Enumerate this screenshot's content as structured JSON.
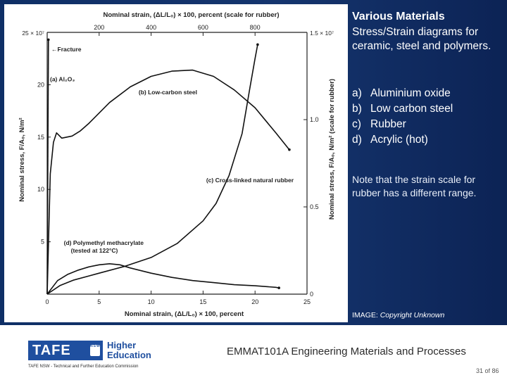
{
  "sidebar": {
    "title": "Various Materials",
    "subtitle": "Stress/Strain diagrams for ceramic, steel and polymers.",
    "list": [
      {
        "letter": "a)",
        "text": "Aluminium oxide"
      },
      {
        "letter": "b)",
        "text": "Low carbon steel"
      },
      {
        "letter": "c)",
        "text": "Rubber"
      },
      {
        "letter": "d)",
        "text": "Acrylic (hot)"
      }
    ],
    "note": "Note that the strain scale for rubber has a different range."
  },
  "credit": {
    "prefix": "IMAGE:",
    "text": "Copyright Unknown"
  },
  "footer": {
    "logo_text": "TAFE",
    "logo_badge": "NSW",
    "logo_sub_1": "Higher",
    "logo_sub_2": "Education",
    "commission": "TAFE NSW - Technical and Further Education Commission",
    "course": "EMMAT101A Engineering Materials and Processes",
    "page": "31 of 86"
  },
  "chart_data": {
    "type": "line",
    "title": "",
    "xlabel": "Nominal strain, (ΔL/L₀) × 100, percent",
    "x2label": "Nominal strain, (ΔL/L₀) × 100, percent (scale for rubber)",
    "ylabel": "Nominal stress, F/A₀, N/m²",
    "y2label": "Nominal stress, F/A₀, N/m² (scale for rubber)",
    "xlim": [
      0,
      25
    ],
    "x2lim": [
      0,
      1000
    ],
    "ylim": [
      0,
      25
    ],
    "y2lim": [
      0,
      1.5
    ],
    "x_ticks": [
      0,
      5,
      10,
      15,
      20,
      25
    ],
    "x2_ticks": [
      200,
      400,
      600,
      800
    ],
    "y_ticks": [
      5,
      10,
      15,
      20
    ],
    "y_top_label": "25 × 10⁷",
    "y2_ticks": [
      0,
      0.5,
      1.0
    ],
    "y2_top_label": "1.5 × 10⁷",
    "series": [
      {
        "name": "(a) Al₂O₃",
        "label": "(a) Al₂O₃",
        "axis": "primary",
        "points": [
          [
            0,
            0
          ],
          [
            0.12,
            24.3
          ]
        ]
      },
      {
        "name": "(b) Low-carbon steel",
        "label": "(b) Low-carbon steel",
        "axis": "primary",
        "points": [
          [
            0,
            0
          ],
          [
            0.3,
            11.5
          ],
          [
            0.6,
            14.5
          ],
          [
            0.9,
            15.4
          ],
          [
            1.4,
            14.9
          ],
          [
            2.4,
            15.1
          ],
          [
            3.2,
            15.6
          ],
          [
            4,
            16.3
          ],
          [
            6,
            18.3
          ],
          [
            8,
            19.8
          ],
          [
            10,
            20.8
          ],
          [
            12,
            21.3
          ],
          [
            14,
            21.4
          ],
          [
            16,
            20.8
          ],
          [
            18,
            19.5
          ],
          [
            20,
            17.8
          ],
          [
            22,
            15.4
          ],
          [
            23.3,
            13.8
          ]
        ]
      },
      {
        "name": "(c) Cross-linked natural rubber",
        "label": "(c) Cross-linked natural rubber",
        "axis": "secondary",
        "points": [
          [
            0,
            0
          ],
          [
            50,
            0.05
          ],
          [
            100,
            0.08
          ],
          [
            200,
            0.12
          ],
          [
            300,
            0.16
          ],
          [
            400,
            0.21
          ],
          [
            500,
            0.29
          ],
          [
            600,
            0.42
          ],
          [
            650,
            0.52
          ],
          [
            700,
            0.68
          ],
          [
            750,
            0.92
          ],
          [
            780,
            1.18
          ],
          [
            800,
            1.35
          ],
          [
            810,
            1.43
          ]
        ]
      },
      {
        "name": "(d) Polymethyl methacrylate (tested at 122°C)",
        "label": "(d) Polymethyl methacrylate",
        "label2": "(tested at 122°C)",
        "axis": "primary",
        "points": [
          [
            0,
            0
          ],
          [
            1,
            1.3
          ],
          [
            2,
            1.9
          ],
          [
            3,
            2.3
          ],
          [
            4,
            2.6
          ],
          [
            5,
            2.8
          ],
          [
            6,
            2.9
          ],
          [
            7,
            2.8
          ],
          [
            8,
            2.5
          ],
          [
            10,
            2.0
          ],
          [
            12,
            1.6
          ],
          [
            14,
            1.3
          ],
          [
            16,
            1.1
          ],
          [
            18,
            0.9
          ],
          [
            20,
            0.8
          ],
          [
            22,
            0.65
          ],
          [
            22.3,
            0.6
          ]
        ]
      }
    ],
    "annotations": [
      "Fracture"
    ]
  }
}
